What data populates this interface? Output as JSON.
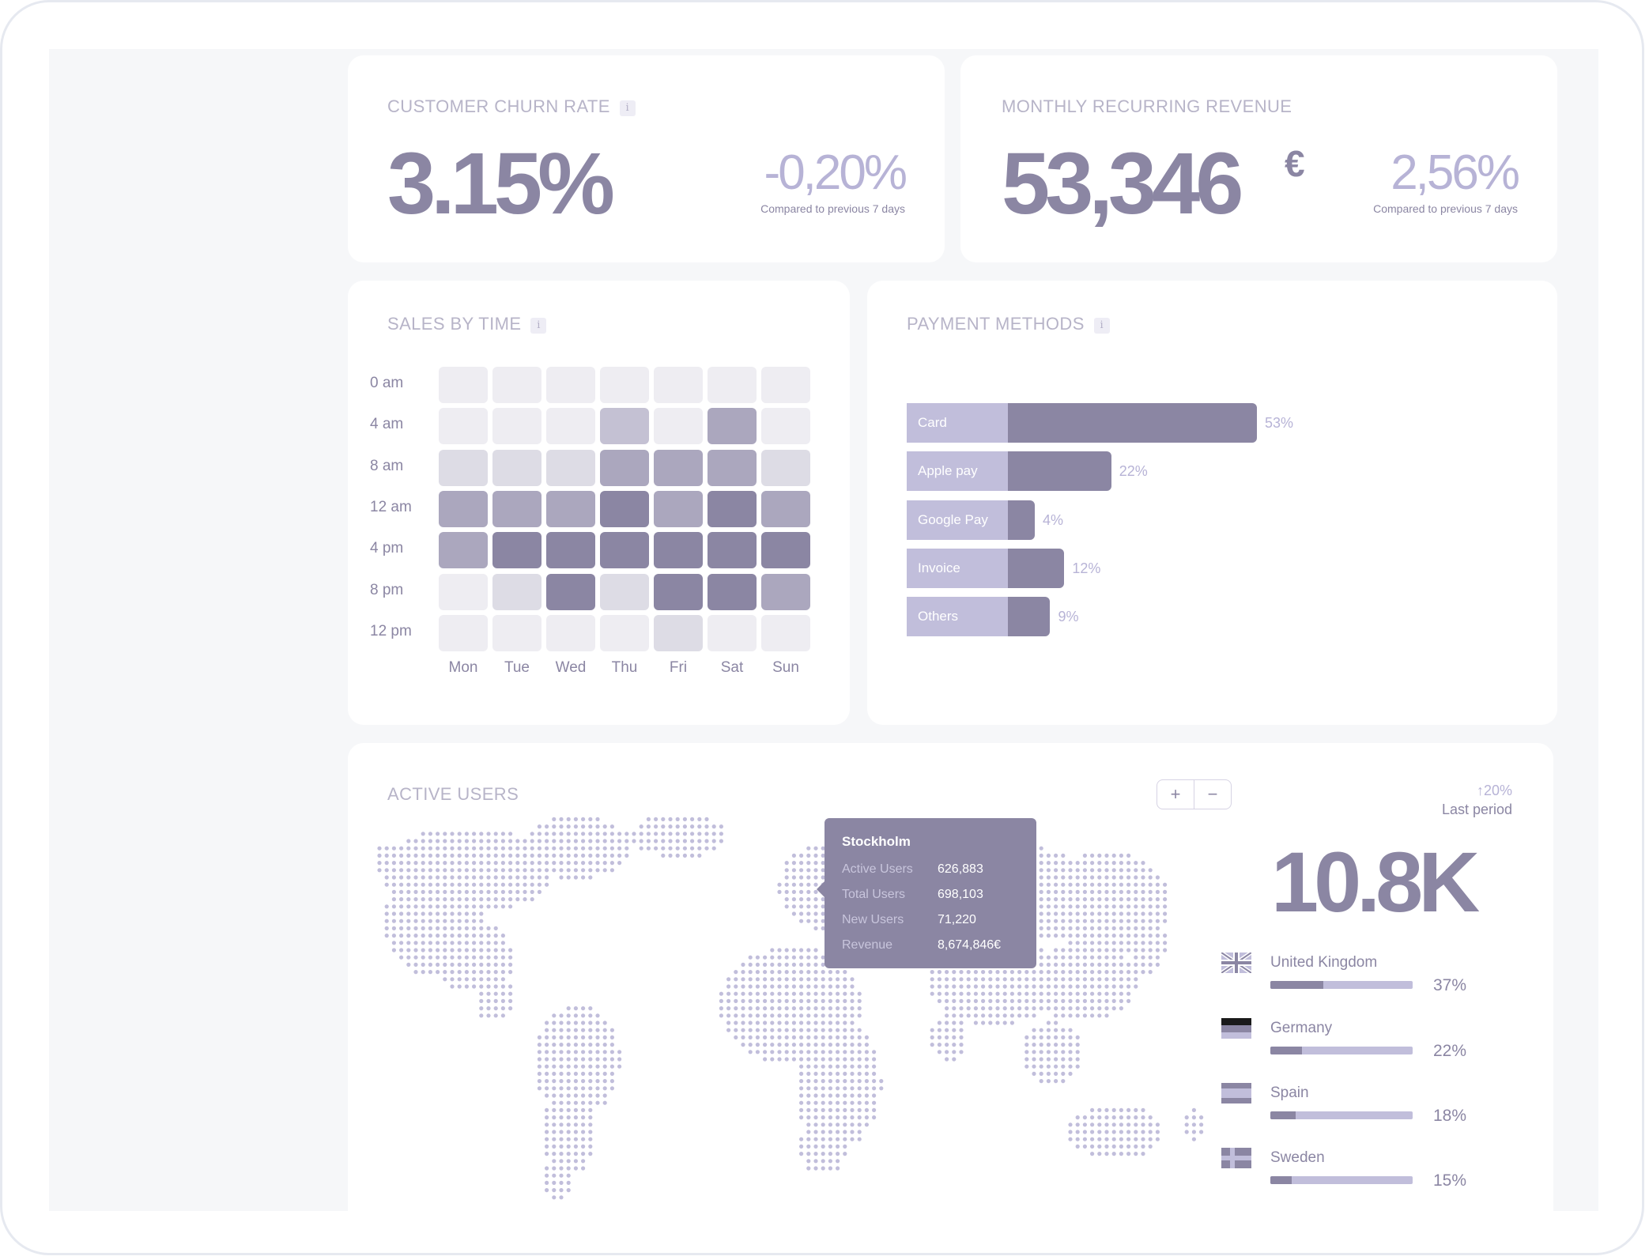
{
  "churn": {
    "title": "CUSTOMER CHURN RATE",
    "info": "i",
    "value": "3.15%",
    "delta": "-0,20%",
    "compare": "Compared to previous 7 days"
  },
  "mrr": {
    "title": "MONTHLY RECURRING REVENUE",
    "value": "53,346",
    "currency": "€",
    "delta": "2,56%",
    "compare": "Compared to previous 7 days"
  },
  "sales_by_time": {
    "title": "SALES BY TIME",
    "info": "i",
    "rows": [
      "0 am",
      "4 am",
      "8 am",
      "12 am",
      "4 pm",
      "8 pm",
      "12 pm"
    ],
    "cols": [
      "Mon",
      "Tue",
      "Wed",
      "Thu",
      "Fri",
      "Sat",
      "Sun"
    ],
    "levels": [
      [
        0,
        0,
        0,
        0,
        0,
        0,
        0
      ],
      [
        0,
        0,
        0,
        2,
        0,
        3,
        0
      ],
      [
        1,
        1,
        1,
        3,
        3,
        3,
        1
      ],
      [
        3,
        3,
        3,
        4,
        3,
        4,
        3
      ],
      [
        3,
        4,
        4,
        4,
        4,
        4,
        4
      ],
      [
        0,
        1,
        4,
        1,
        4,
        4,
        3
      ],
      [
        0,
        0,
        0,
        0,
        1,
        0,
        0
      ]
    ],
    "palette": [
      "#eeedf2",
      "#dddce5",
      "#c4c1d3",
      "#aba7be",
      "#8b86a3"
    ]
  },
  "payment_methods": {
    "title": "PAYMENT METHODS",
    "info": "i",
    "items": [
      {
        "label": "Card",
        "pct": "53%",
        "value": 53
      },
      {
        "label": "Apple pay",
        "pct": "22%",
        "value": 22
      },
      {
        "label": "Google Pay",
        "pct": "4%",
        "value": 4
      },
      {
        "label": "Invoice",
        "pct": "12%",
        "value": 12
      },
      {
        "label": "Others",
        "pct": "9%",
        "value": 9
      }
    ]
  },
  "active_users": {
    "title": "ACTIVE USERS",
    "zoom_in": "+",
    "zoom_out": "−",
    "trend": "↑20%",
    "trend_label": "Last period",
    "total": "10.8K",
    "tooltip": {
      "city": "Stockholm",
      "rows": [
        {
          "key": "Active Users",
          "value": "626,883"
        },
        {
          "key": "Total Users",
          "value": "698,103"
        },
        {
          "key": "New Users",
          "value": "71,220"
        },
        {
          "key": "Revenue",
          "value": "8,674,846€"
        }
      ]
    },
    "countries": [
      {
        "name": "United Kingdom",
        "pct": "37%",
        "value": 0.37
      },
      {
        "name": "Germany",
        "pct": "22%",
        "value": 0.22
      },
      {
        "name": "Spain",
        "pct": "18%",
        "value": 0.18
      },
      {
        "name": "Sweden",
        "pct": "15%",
        "value": 0.15
      }
    ]
  },
  "colors": {
    "accent": "#8b86a3",
    "light_accent": "#c1bedb",
    "title": "#b7b4c8",
    "background": "#f6f7f9"
  }
}
